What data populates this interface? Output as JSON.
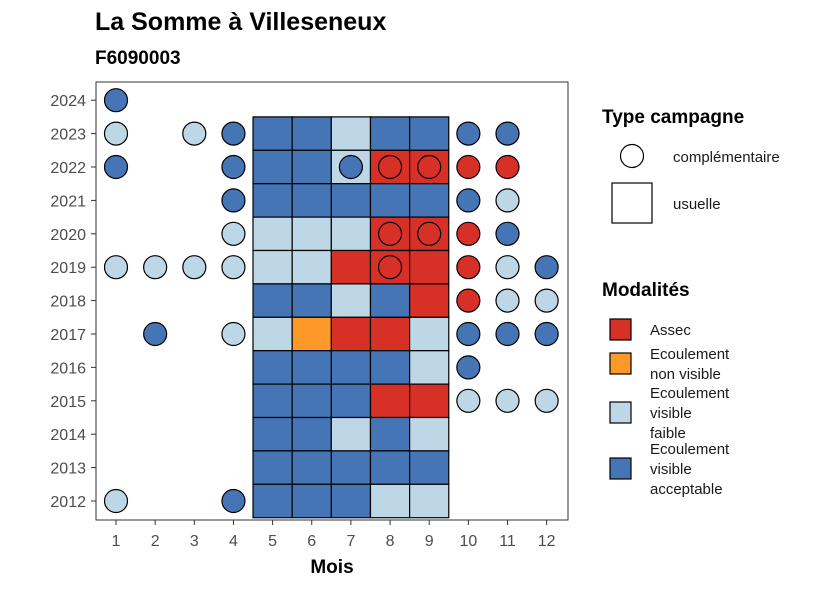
{
  "colors": {
    "Assec": "#d73027",
    "Ecoulement non visible": "#fe9929",
    "Ecoulement visible faible": "#bdd7e7",
    "Ecoulement visible acceptable": "#4575b4"
  },
  "chart_data": {
    "type": "heatmap",
    "title": "La Somme à Villeseneux",
    "subtitle": "F6090003",
    "xlabel": "Mois",
    "ylabel": "",
    "x_ticks": [
      "1",
      "2",
      "3",
      "4",
      "5",
      "6",
      "7",
      "8",
      "9",
      "10",
      "11",
      "12"
    ],
    "y_ticks": [
      "2012",
      "2013",
      "2014",
      "2015",
      "2016",
      "2017",
      "2018",
      "2019",
      "2020",
      "2021",
      "2022",
      "2023",
      "2024"
    ],
    "xlim": [
      0.5,
      12.5
    ],
    "ylim": [
      2011.5,
      2024.5
    ],
    "grid": false,
    "legend_position": "right",
    "shape_legend": {
      "title": "Type campagne",
      "entries": [
        {
          "label": "complémentaire",
          "shape": "circle"
        },
        {
          "label": "usuelle",
          "shape": "square"
        }
      ]
    },
    "color_legend": {
      "title": "Modalités",
      "entries": [
        {
          "key": "Assec",
          "lines": [
            "Assec"
          ]
        },
        {
          "key": "Ecoulement non visible",
          "lines": [
            "Ecoulement",
            "non visible"
          ]
        },
        {
          "key": "Ecoulement visible faible",
          "lines": [
            "Ecoulement",
            "visible",
            "faible"
          ]
        },
        {
          "key": "Ecoulement visible acceptable",
          "lines": [
            "Ecoulement",
            "visible",
            "acceptable"
          ]
        }
      ]
    },
    "usuelle": [
      {
        "year": 2023,
        "months": [
          "Ecoulement visible acceptable",
          "Ecoulement visible acceptable",
          "Ecoulement visible faible",
          "Ecoulement visible acceptable",
          "Ecoulement visible acceptable"
        ]
      },
      {
        "year": 2022,
        "months": [
          "Ecoulement visible acceptable",
          "Ecoulement visible acceptable",
          "Ecoulement visible faible",
          "Assec",
          "Assec"
        ]
      },
      {
        "year": 2021,
        "months": [
          "Ecoulement visible acceptable",
          "Ecoulement visible acceptable",
          "Ecoulement visible acceptable",
          "Ecoulement visible acceptable",
          "Ecoulement visible acceptable"
        ]
      },
      {
        "year": 2020,
        "months": [
          "Ecoulement visible faible",
          "Ecoulement visible faible",
          "Ecoulement visible faible",
          "Assec",
          "Assec"
        ]
      },
      {
        "year": 2019,
        "months": [
          "Ecoulement visible faible",
          "Ecoulement visible faible",
          "Assec",
          "Assec",
          "Assec"
        ]
      },
      {
        "year": 2018,
        "months": [
          "Ecoulement visible acceptable",
          "Ecoulement visible acceptable",
          "Ecoulement visible faible",
          "Ecoulement visible acceptable",
          "Assec"
        ]
      },
      {
        "year": 2017,
        "months": [
          "Ecoulement visible faible",
          "Ecoulement non visible",
          "Assec",
          "Assec",
          "Ecoulement visible faible"
        ]
      },
      {
        "year": 2016,
        "months": [
          "Ecoulement visible acceptable",
          "Ecoulement visible acceptable",
          "Ecoulement visible acceptable",
          "Ecoulement visible acceptable",
          "Ecoulement visible faible"
        ]
      },
      {
        "year": 2015,
        "months": [
          "Ecoulement visible acceptable",
          "Ecoulement visible acceptable",
          "Ecoulement visible acceptable",
          "Assec",
          "Assec"
        ]
      },
      {
        "year": 2014,
        "months": [
          "Ecoulement visible acceptable",
          "Ecoulement visible acceptable",
          "Ecoulement visible faible",
          "Ecoulement visible acceptable",
          "Ecoulement visible faible"
        ]
      },
      {
        "year": 2013,
        "months": [
          "Ecoulement visible acceptable",
          "Ecoulement visible acceptable",
          "Ecoulement visible acceptable",
          "Ecoulement visible acceptable",
          "Ecoulement visible acceptable"
        ]
      },
      {
        "year": 2012,
        "months": [
          "Ecoulement visible acceptable",
          "Ecoulement visible acceptable",
          "Ecoulement visible acceptable",
          "Ecoulement visible faible",
          "Ecoulement visible faible"
        ]
      }
    ],
    "usuelle_first_month": 5,
    "complementaire": [
      {
        "year": 2024,
        "month": 1,
        "value": "Ecoulement visible acceptable"
      },
      {
        "year": 2023,
        "month": 1,
        "value": "Ecoulement visible faible"
      },
      {
        "year": 2023,
        "month": 3,
        "value": "Ecoulement visible faible"
      },
      {
        "year": 2023,
        "month": 4,
        "value": "Ecoulement visible acceptable"
      },
      {
        "year": 2023,
        "month": 10,
        "value": "Ecoulement visible acceptable"
      },
      {
        "year": 2023,
        "month": 11,
        "value": "Ecoulement visible acceptable"
      },
      {
        "year": 2022,
        "month": 1,
        "value": "Ecoulement visible acceptable"
      },
      {
        "year": 2022,
        "month": 4,
        "value": "Ecoulement visible acceptable"
      },
      {
        "year": 2022,
        "month": 7,
        "value": "Ecoulement visible acceptable"
      },
      {
        "year": 2022,
        "month": 8,
        "value": "Assec"
      },
      {
        "year": 2022,
        "month": 9,
        "value": "Assec"
      },
      {
        "year": 2022,
        "month": 10,
        "value": "Assec"
      },
      {
        "year": 2022,
        "month": 11,
        "value": "Assec"
      },
      {
        "year": 2021,
        "month": 4,
        "value": "Ecoulement visible acceptable"
      },
      {
        "year": 2021,
        "month": 10,
        "value": "Ecoulement visible acceptable"
      },
      {
        "year": 2021,
        "month": 11,
        "value": "Ecoulement visible faible"
      },
      {
        "year": 2020,
        "month": 4,
        "value": "Ecoulement visible faible"
      },
      {
        "year": 2020,
        "month": 8,
        "value": "Assec"
      },
      {
        "year": 2020,
        "month": 9,
        "value": "Assec"
      },
      {
        "year": 2020,
        "month": 10,
        "value": "Assec"
      },
      {
        "year": 2020,
        "month": 11,
        "value": "Ecoulement visible acceptable"
      },
      {
        "year": 2019,
        "month": 1,
        "value": "Ecoulement visible faible"
      },
      {
        "year": 2019,
        "month": 2,
        "value": "Ecoulement visible faible"
      },
      {
        "year": 2019,
        "month": 3,
        "value": "Ecoulement visible faible"
      },
      {
        "year": 2019,
        "month": 4,
        "value": "Ecoulement visible faible"
      },
      {
        "year": 2019,
        "month": 8,
        "value": "Assec"
      },
      {
        "year": 2019,
        "month": 10,
        "value": "Assec"
      },
      {
        "year": 2019,
        "month": 11,
        "value": "Ecoulement visible faible"
      },
      {
        "year": 2019,
        "month": 12,
        "value": "Ecoulement visible acceptable"
      },
      {
        "year": 2018,
        "month": 10,
        "value": "Assec"
      },
      {
        "year": 2018,
        "month": 11,
        "value": "Ecoulement visible faible"
      },
      {
        "year": 2018,
        "month": 12,
        "value": "Ecoulement visible faible"
      },
      {
        "year": 2017,
        "month": 2,
        "value": "Ecoulement visible acceptable"
      },
      {
        "year": 2017,
        "month": 4,
        "value": "Ecoulement visible faible"
      },
      {
        "year": 2017,
        "month": 10,
        "value": "Ecoulement visible acceptable"
      },
      {
        "year": 2017,
        "month": 11,
        "value": "Ecoulement visible acceptable"
      },
      {
        "year": 2017,
        "month": 12,
        "value": "Ecoulement visible acceptable"
      },
      {
        "year": 2016,
        "month": 10,
        "value": "Ecoulement visible acceptable"
      },
      {
        "year": 2015,
        "month": 10,
        "value": "Ecoulement visible faible"
      },
      {
        "year": 2015,
        "month": 11,
        "value": "Ecoulement visible faible"
      },
      {
        "year": 2015,
        "month": 12,
        "value": "Ecoulement visible faible"
      },
      {
        "year": 2012,
        "month": 1,
        "value": "Ecoulement visible faible"
      },
      {
        "year": 2012,
        "month": 4,
        "value": "Ecoulement visible acceptable"
      }
    ]
  }
}
